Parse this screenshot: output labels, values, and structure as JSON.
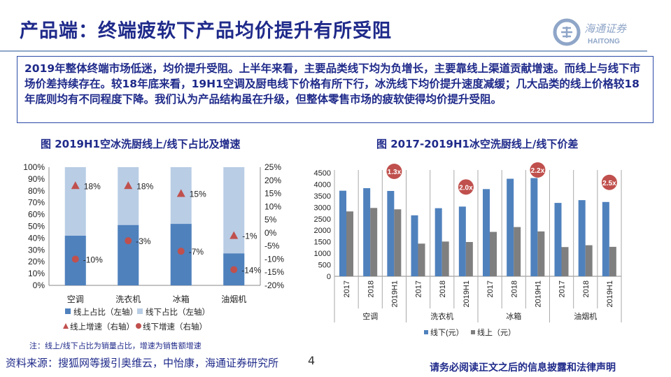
{
  "header": {
    "title": "产品端：终端疲软下产品均价提升有所受阻",
    "logo_cn": "海通证券",
    "logo_en": "HAITONG"
  },
  "summary": "2019年整体终端市场低迷，均价提升受阻。上半年来看，主要品类线下均为负增长，主要靠线上渠道贡献增速。而线上与线下市场价差持续存在。较18年底来看，19H1空调及厨电线下价格有所下行，冰洗线下均价提升速度减缓；几大品类的线上价格较18年底则均有不同程度下降。我们认为产品结构虽在升级，但整体零售市场的疲软使得均价提升受阻。",
  "footer": {
    "note": "注：线上/线下占比为销量占比，增速为销售额增速",
    "source": "资料来源：搜狐网等援引奥维云，中怡康，海通证券研究所",
    "page": "4",
    "disclaimer": "请务必阅读正文之后的信息披露和法律声明"
  },
  "colors": {
    "online": "#4f81bd",
    "offline_share": "#b9cde5",
    "marker": "#c0504d",
    "gray": "#7f7f7f"
  },
  "chart_data": [
    {
      "type": "bar",
      "title": "图  2019H1空冰洗厨线上/线下占比及增速",
      "categories": [
        "空调",
        "洗衣机",
        "冰箱",
        "油烟机"
      ],
      "series": [
        {
          "name": "线上占比（左轴）",
          "values": [
            42,
            51,
            52,
            27
          ]
        },
        {
          "name": "线下占比（左轴）",
          "values": [
            58,
            49,
            48,
            73
          ]
        },
        {
          "name": "线上增速（右轴）",
          "values": [
            18,
            18,
            15,
            -1
          ]
        },
        {
          "name": "线下增速（右轴）",
          "values": [
            -10,
            -3,
            -7,
            -14
          ]
        }
      ],
      "labels_online": [
        "18%",
        "18%",
        "15%",
        "-1%"
      ],
      "labels_offline": [
        "-10%",
        "-3%",
        "-7%",
        "-14%"
      ],
      "left_ticks": [
        "0%",
        "10%",
        "20%",
        "30%",
        "40%",
        "50%",
        "60%",
        "70%",
        "80%",
        "90%",
        "100%"
      ],
      "right_ticks": [
        "-20%",
        "-15%",
        "-10%",
        "-5%",
        "0%",
        "5%",
        "10%",
        "15%",
        "20%",
        "25%"
      ],
      "ylim": [
        0,
        100
      ],
      "y2lim": [
        -20,
        25
      ],
      "legend": "bottom"
    },
    {
      "type": "bar",
      "title": "图  2017-2019H1冰空洗厨线上/线下价差",
      "groups": [
        "空调",
        "洗衣机",
        "冰箱",
        "油烟机"
      ],
      "years": [
        "2017",
        "2018",
        "2019H1"
      ],
      "series": [
        {
          "name": "线下(元）",
          "values": [
            3720,
            3830,
            3710,
            2650,
            2960,
            3030,
            3790,
            4240,
            4270,
            3190,
            3310,
            3230
          ]
        },
        {
          "name": "线上（元）",
          "values": [
            2820,
            2970,
            2910,
            1420,
            1510,
            1490,
            1930,
            2140,
            1950,
            1270,
            1350,
            1280
          ]
        }
      ],
      "ratios": [
        "1.3x",
        "2.0x",
        "2.2x",
        "2.5x"
      ],
      "ticks": [
        "0",
        "500",
        "1000",
        "1500",
        "2000",
        "2500",
        "3000",
        "3500",
        "4000",
        "4500"
      ],
      "ylim": [
        0,
        4500
      ],
      "legend": "bottom"
    }
  ]
}
